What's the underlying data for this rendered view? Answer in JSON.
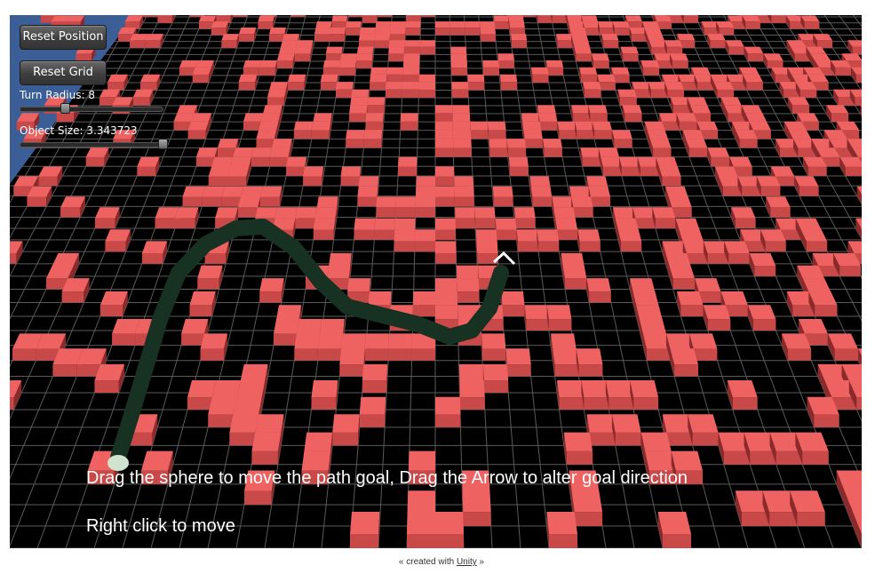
{
  "ui": {
    "buttons": [
      "Reset Position",
      "Reset Grid"
    ],
    "turn_radius_label": "Turn Radius: 8",
    "object_size_label": "Object Size: 3.343723",
    "instructions": [
      "Drag the sphere to move the path goal, Drag the Arrow to alter goal direction",
      "Right click to move"
    ],
    "footer": {
      "prefix": "« created with",
      "link": "Unity",
      "suffix": "»"
    }
  }
}
